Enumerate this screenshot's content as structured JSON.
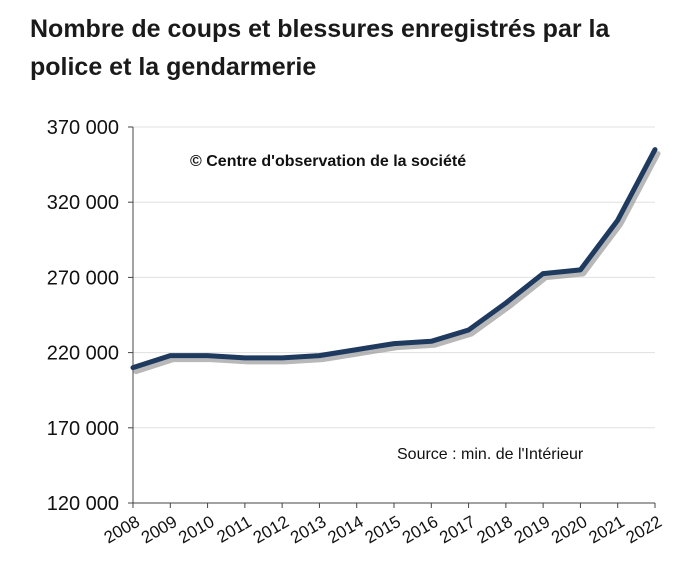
{
  "chart_data": {
    "type": "line",
    "title": "Nombre de coups et blessures enregistrés par la police et la gendarmerie",
    "categories": [
      "2008",
      "2009",
      "2010",
      "2011",
      "2012",
      "2013",
      "2014",
      "2015",
      "2016",
      "2017",
      "2018",
      "2019",
      "2020",
      "2021",
      "2022"
    ],
    "series": [
      {
        "values": [
          210000,
          218000,
          218000,
          216500,
          216500,
          218000,
          222000,
          226000,
          227500,
          235000,
          253000,
          272500,
          275000,
          308000,
          355000
        ]
      }
    ],
    "ylim": [
      120000,
      370000
    ],
    "yticks": [
      370000,
      320000,
      270000,
      220000,
      170000,
      120000
    ],
    "ytick_labels": [
      "370 000",
      "320 000",
      "270 000",
      "220 000",
      "170 000",
      "120 000"
    ],
    "grid": true,
    "annotations": {
      "copyright": "© Centre d'observation de la société",
      "source": "Source :  min. de l'Intérieur"
    },
    "colors": {
      "line": "#1f3a5f",
      "shadow": "#9a9a9a",
      "grid": "#e0e0e0",
      "axis": "#444444"
    }
  }
}
